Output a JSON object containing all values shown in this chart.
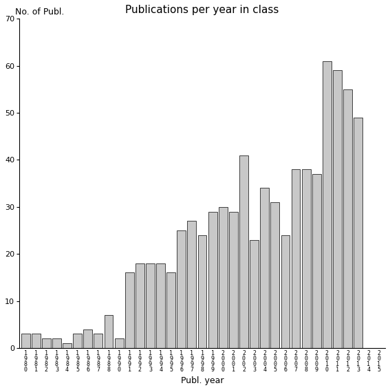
{
  "title": "Publications per year in class",
  "xlabel": "Publ. year",
  "ylabel": "No. of Publ.",
  "ylim": [
    0,
    70
  ],
  "yticks": [
    0,
    10,
    20,
    30,
    40,
    50,
    60,
    70
  ],
  "bar_color": "#c8c8c8",
  "bar_edgecolor": "#000000",
  "year_labels": [
    "1980",
    "1981",
    "1982",
    "1983",
    "1984",
    "1985",
    "1986",
    "1987",
    "1988",
    "1990",
    "1991",
    "1992",
    "1993",
    "1994",
    "1995",
    "1996",
    "1997",
    "1998",
    "1999",
    "2000",
    "2001",
    "2002",
    "2003",
    "2004",
    "2005",
    "2006",
    "2007",
    "2008",
    "2009",
    "2010",
    "2011",
    "2012",
    "2013",
    "2014",
    "2015"
  ],
  "values": [
    3,
    3,
    2,
    2,
    1,
    3,
    4,
    3,
    7,
    2,
    16,
    18,
    18,
    18,
    16,
    25,
    27,
    24,
    29,
    30,
    29,
    41,
    23,
    34,
    31,
    24,
    38,
    38,
    37,
    61,
    59,
    55,
    49,
    0,
    0
  ],
  "figsize": [
    5.67,
    5.67
  ],
  "dpi": 100,
  "title_fontsize": 11,
  "axis_label_fontsize": 9,
  "tick_fontsize": 8,
  "xtick_fontsize": 6,
  "bar_linewidth": 0.5
}
